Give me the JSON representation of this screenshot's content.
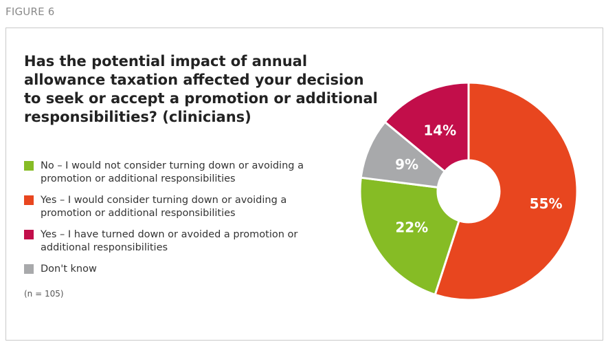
{
  "figure_label": "FIGURE 6",
  "note": "(n = 105)",
  "chart_data": {
    "type": "pie",
    "title": "Has the potential impact of annual allowance taxation affected your decision to seek or accept a promotion or additional responsibilities? (clinicians)",
    "unit": "%",
    "slices": [
      {
        "label": "No – I would not consider turning down or avoiding a promotion or additional responsibilities",
        "value": 22,
        "display": "22%",
        "color": "#86bc25"
      },
      {
        "label": "Yes – I would consider turning down or avoiding a promotion or additional responsibilities",
        "value": 55,
        "display": "55%",
        "color": "#e8461f"
      },
      {
        "label": "Yes – I have turned down or avoided a promotion or additional responsibilities",
        "value": 14,
        "display": "14%",
        "color": "#c20e4a"
      },
      {
        "label": "Don't know",
        "value": 9,
        "display": "9%",
        "color": "#a8a9ab"
      }
    ],
    "draw_order": [
      1,
      0,
      3,
      2
    ]
  }
}
